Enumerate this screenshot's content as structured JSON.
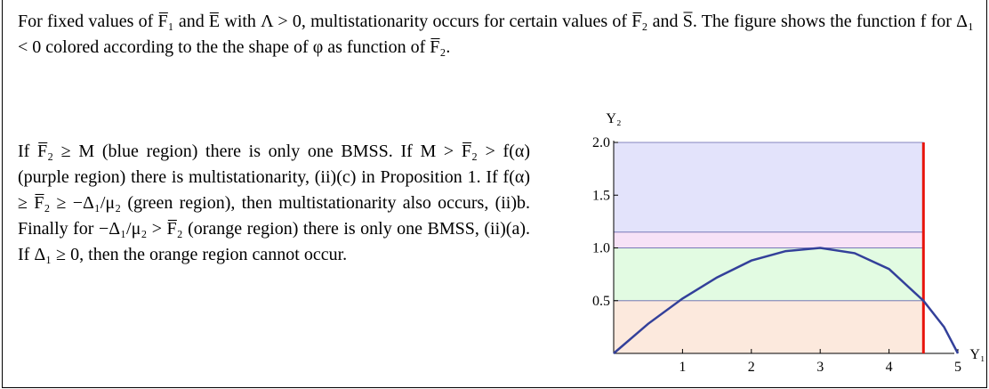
{
  "text": {
    "intro": "For fixed values of F̅₁ and E̅ with Λ > 0, multistationarity occurs for certain values of F̅₂ and S̅. The figure shows the function f for Δ₁ < 0 colored according to the the shape of φ as function of F̅₂.",
    "body": "If F̅₂ ≥ M (blue region) there is only one BMSS. If M > F̅₂ > f(α) (purple region) there is multistationarity, (ii)(c) in Proposition 1. If f(α) ≥ F̅₂ ≥ −Δ₁/μ₂ (green region), then multistationarity also occurs, (ii)b. Finally for −Δ₁/μ₂ > F̅₂ (orange region) there is only one BMSS, (ii)(a). If Δ₁ ≥ 0, then the orange region cannot occur."
  },
  "chart_data": {
    "type": "line",
    "xlabel": "Y₁",
    "ylabel": "Y₂",
    "xlim": [
      0,
      5
    ],
    "ylim": [
      0,
      2
    ],
    "xticks": [
      1,
      2,
      3,
      4,
      5
    ],
    "yticks": [
      {
        "value": 0.5,
        "label": "0.5"
      },
      {
        "value": 1,
        "label": "1.0"
      },
      {
        "value": 1.5,
        "label": "1.5"
      },
      {
        "value": 2,
        "label": "2.0"
      }
    ],
    "regions": [
      {
        "y": [
          0,
          0.5
        ],
        "x": [
          0,
          4.5
        ],
        "color": "#fce9dd"
      },
      {
        "y": [
          0.5,
          1
        ],
        "x": [
          0,
          4.5
        ],
        "color": "#e2fbe2"
      },
      {
        "y": [
          1,
          1.15
        ],
        "x": [
          0,
          4.5
        ],
        "color": "#f7e2f7"
      },
      {
        "y": [
          1.15,
          2
        ],
        "x": [
          0,
          4.5
        ],
        "color": "#e3e3fb"
      }
    ],
    "vline": {
      "x": 4.5,
      "y": [
        0,
        2
      ],
      "color": "#e8140c"
    },
    "series": [
      {
        "color": "#33409a",
        "x": [
          0,
          0.5,
          1,
          1.5,
          2,
          2.5,
          3,
          3.5,
          4,
          4.5,
          4.8,
          5
        ],
        "values": [
          0,
          0.28,
          0.52,
          0.72,
          0.88,
          0.97,
          1.0,
          0.95,
          0.8,
          0.5,
          0.25,
          0
        ]
      }
    ]
  }
}
